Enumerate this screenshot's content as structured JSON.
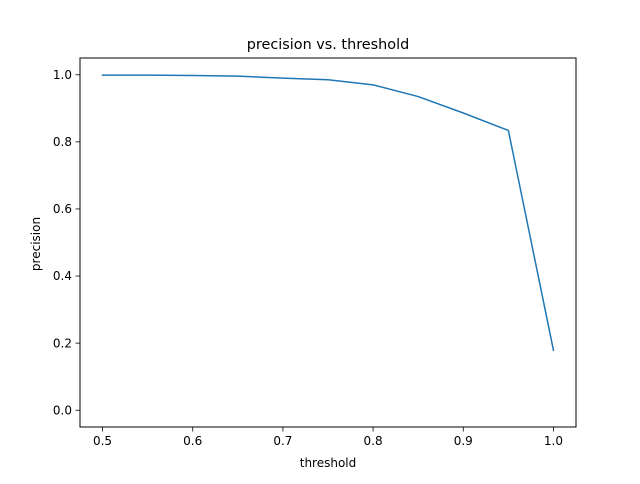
{
  "chart_data": {
    "type": "line",
    "title": "precision vs. threshold",
    "xlabel": "threshold",
    "ylabel": "precision",
    "xlim": [
      0.475,
      1.025
    ],
    "ylim": [
      -0.05,
      1.05
    ],
    "xticks": [
      0.5,
      0.6,
      0.7,
      0.8,
      0.9,
      1.0
    ],
    "xtick_labels": [
      "0.5",
      "0.6",
      "0.7",
      "0.8",
      "0.9",
      "1.0"
    ],
    "yticks": [
      0.0,
      0.2,
      0.4,
      0.6,
      0.8,
      1.0
    ],
    "ytick_labels": [
      "0.0",
      "0.2",
      "0.4",
      "0.6",
      "0.8",
      "1.0"
    ],
    "grid": false,
    "series": [
      {
        "color": "#1f77b4",
        "x": [
          0.5,
          0.55,
          0.6,
          0.65,
          0.7,
          0.75,
          0.8,
          0.85,
          0.9,
          0.95,
          1.0
        ],
        "y": [
          0.999,
          0.999,
          0.998,
          0.996,
          0.99,
          0.985,
          0.97,
          0.935,
          0.886,
          0.834,
          0.179
        ]
      }
    ]
  }
}
